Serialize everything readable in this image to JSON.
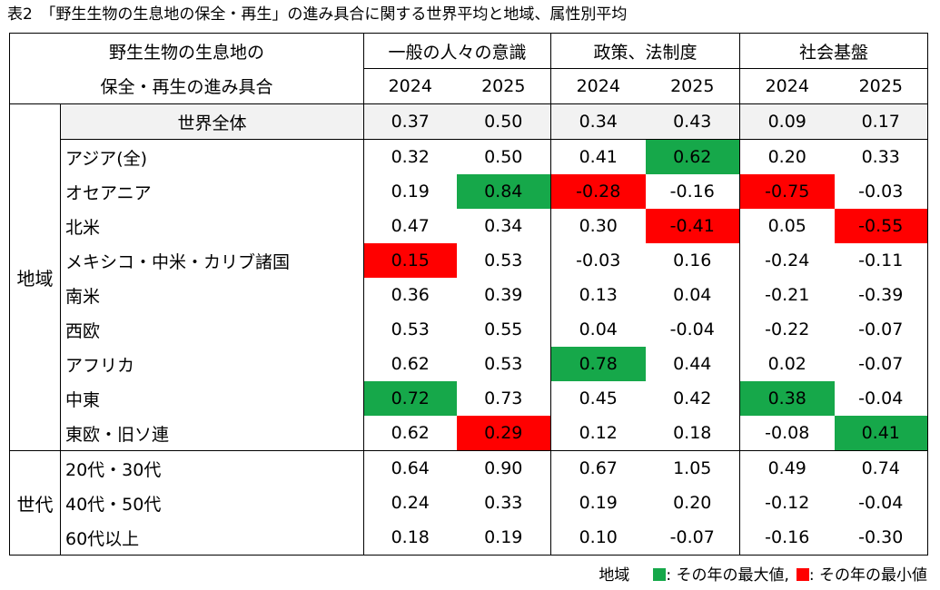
{
  "title": "表2　「野生生物の生息地の保全・再生」の進み具合に関する世界平均と地域、属性別平均",
  "header": {
    "corner_line1": "野生生物の生息地の",
    "corner_line2": "保全・再生の進み具合",
    "groups": [
      "一般の人々の意識",
      "政策、法制度",
      "社会基盤"
    ],
    "years": [
      "2024",
      "2025",
      "2024",
      "2025",
      "2024",
      "2025"
    ]
  },
  "world": {
    "label": "世界全体",
    "values": [
      "0.37",
      "0.50",
      "0.34",
      "0.43",
      "0.09",
      "0.17"
    ]
  },
  "region_label": "地域",
  "regions": [
    {
      "name": "アジア(全)",
      "values": [
        "0.32",
        "0.50",
        "0.41",
        "0.62",
        "0.20",
        "0.33"
      ],
      "hl": [
        "",
        "",
        "",
        "max",
        "",
        ""
      ]
    },
    {
      "name": "オセアニア",
      "values": [
        "0.19",
        "0.84",
        "-0.28",
        "-0.16",
        "-0.75",
        "-0.03"
      ],
      "hl": [
        "",
        "max",
        "min",
        "",
        "min",
        ""
      ]
    },
    {
      "name": "北米",
      "values": [
        "0.47",
        "0.34",
        "0.30",
        "-0.41",
        "0.05",
        "-0.55"
      ],
      "hl": [
        "",
        "",
        "",
        "min",
        "",
        "min"
      ]
    },
    {
      "name": "メキシコ・中米・カリブ諸国",
      "values": [
        "0.15",
        "0.53",
        "-0.03",
        "0.16",
        "-0.24",
        "-0.11"
      ],
      "hl": [
        "min",
        "",
        "",
        "",
        "",
        ""
      ]
    },
    {
      "name": "南米",
      "values": [
        "0.36",
        "0.39",
        "0.13",
        "0.04",
        "-0.21",
        "-0.39"
      ],
      "hl": [
        "",
        "",
        "",
        "",
        "",
        ""
      ]
    },
    {
      "name": "西欧",
      "values": [
        "0.53",
        "0.55",
        "0.04",
        "-0.04",
        "-0.22",
        "-0.07"
      ],
      "hl": [
        "",
        "",
        "",
        "",
        "",
        ""
      ]
    },
    {
      "name": "アフリカ",
      "values": [
        "0.62",
        "0.53",
        "0.78",
        "0.44",
        "0.02",
        "-0.07"
      ],
      "hl": [
        "",
        "",
        "max",
        "",
        "",
        ""
      ]
    },
    {
      "name": "中東",
      "values": [
        "0.72",
        "0.73",
        "0.45",
        "0.42",
        "0.38",
        "-0.04"
      ],
      "hl": [
        "max",
        "",
        "",
        "",
        "max",
        ""
      ]
    },
    {
      "name": "東欧・旧ソ連",
      "values": [
        "0.62",
        "0.29",
        "0.12",
        "0.18",
        "-0.08",
        "0.41"
      ],
      "hl": [
        "",
        "min",
        "",
        "",
        "",
        "max"
      ]
    }
  ],
  "generation_label": "世代",
  "generations": [
    {
      "name": "20代・30代",
      "values": [
        "0.64",
        "0.90",
        "0.67",
        "1.05",
        "0.49",
        "0.74"
      ]
    },
    {
      "name": "40代・50代",
      "values": [
        "0.24",
        "0.33",
        "0.19",
        "0.20",
        "-0.12",
        "-0.04"
      ]
    },
    {
      "name": "60代以上",
      "values": [
        "0.18",
        "0.19",
        "0.10",
        "-0.07",
        "-0.16",
        "-0.30"
      ]
    }
  ],
  "legend": {
    "prefix": "地域",
    "max_text": ": その年の最大値,",
    "min_text": ": その年の最小値"
  },
  "colors": {
    "max": "#16a84a",
    "min": "#ff0000",
    "world_row": "#f2f2f2"
  }
}
